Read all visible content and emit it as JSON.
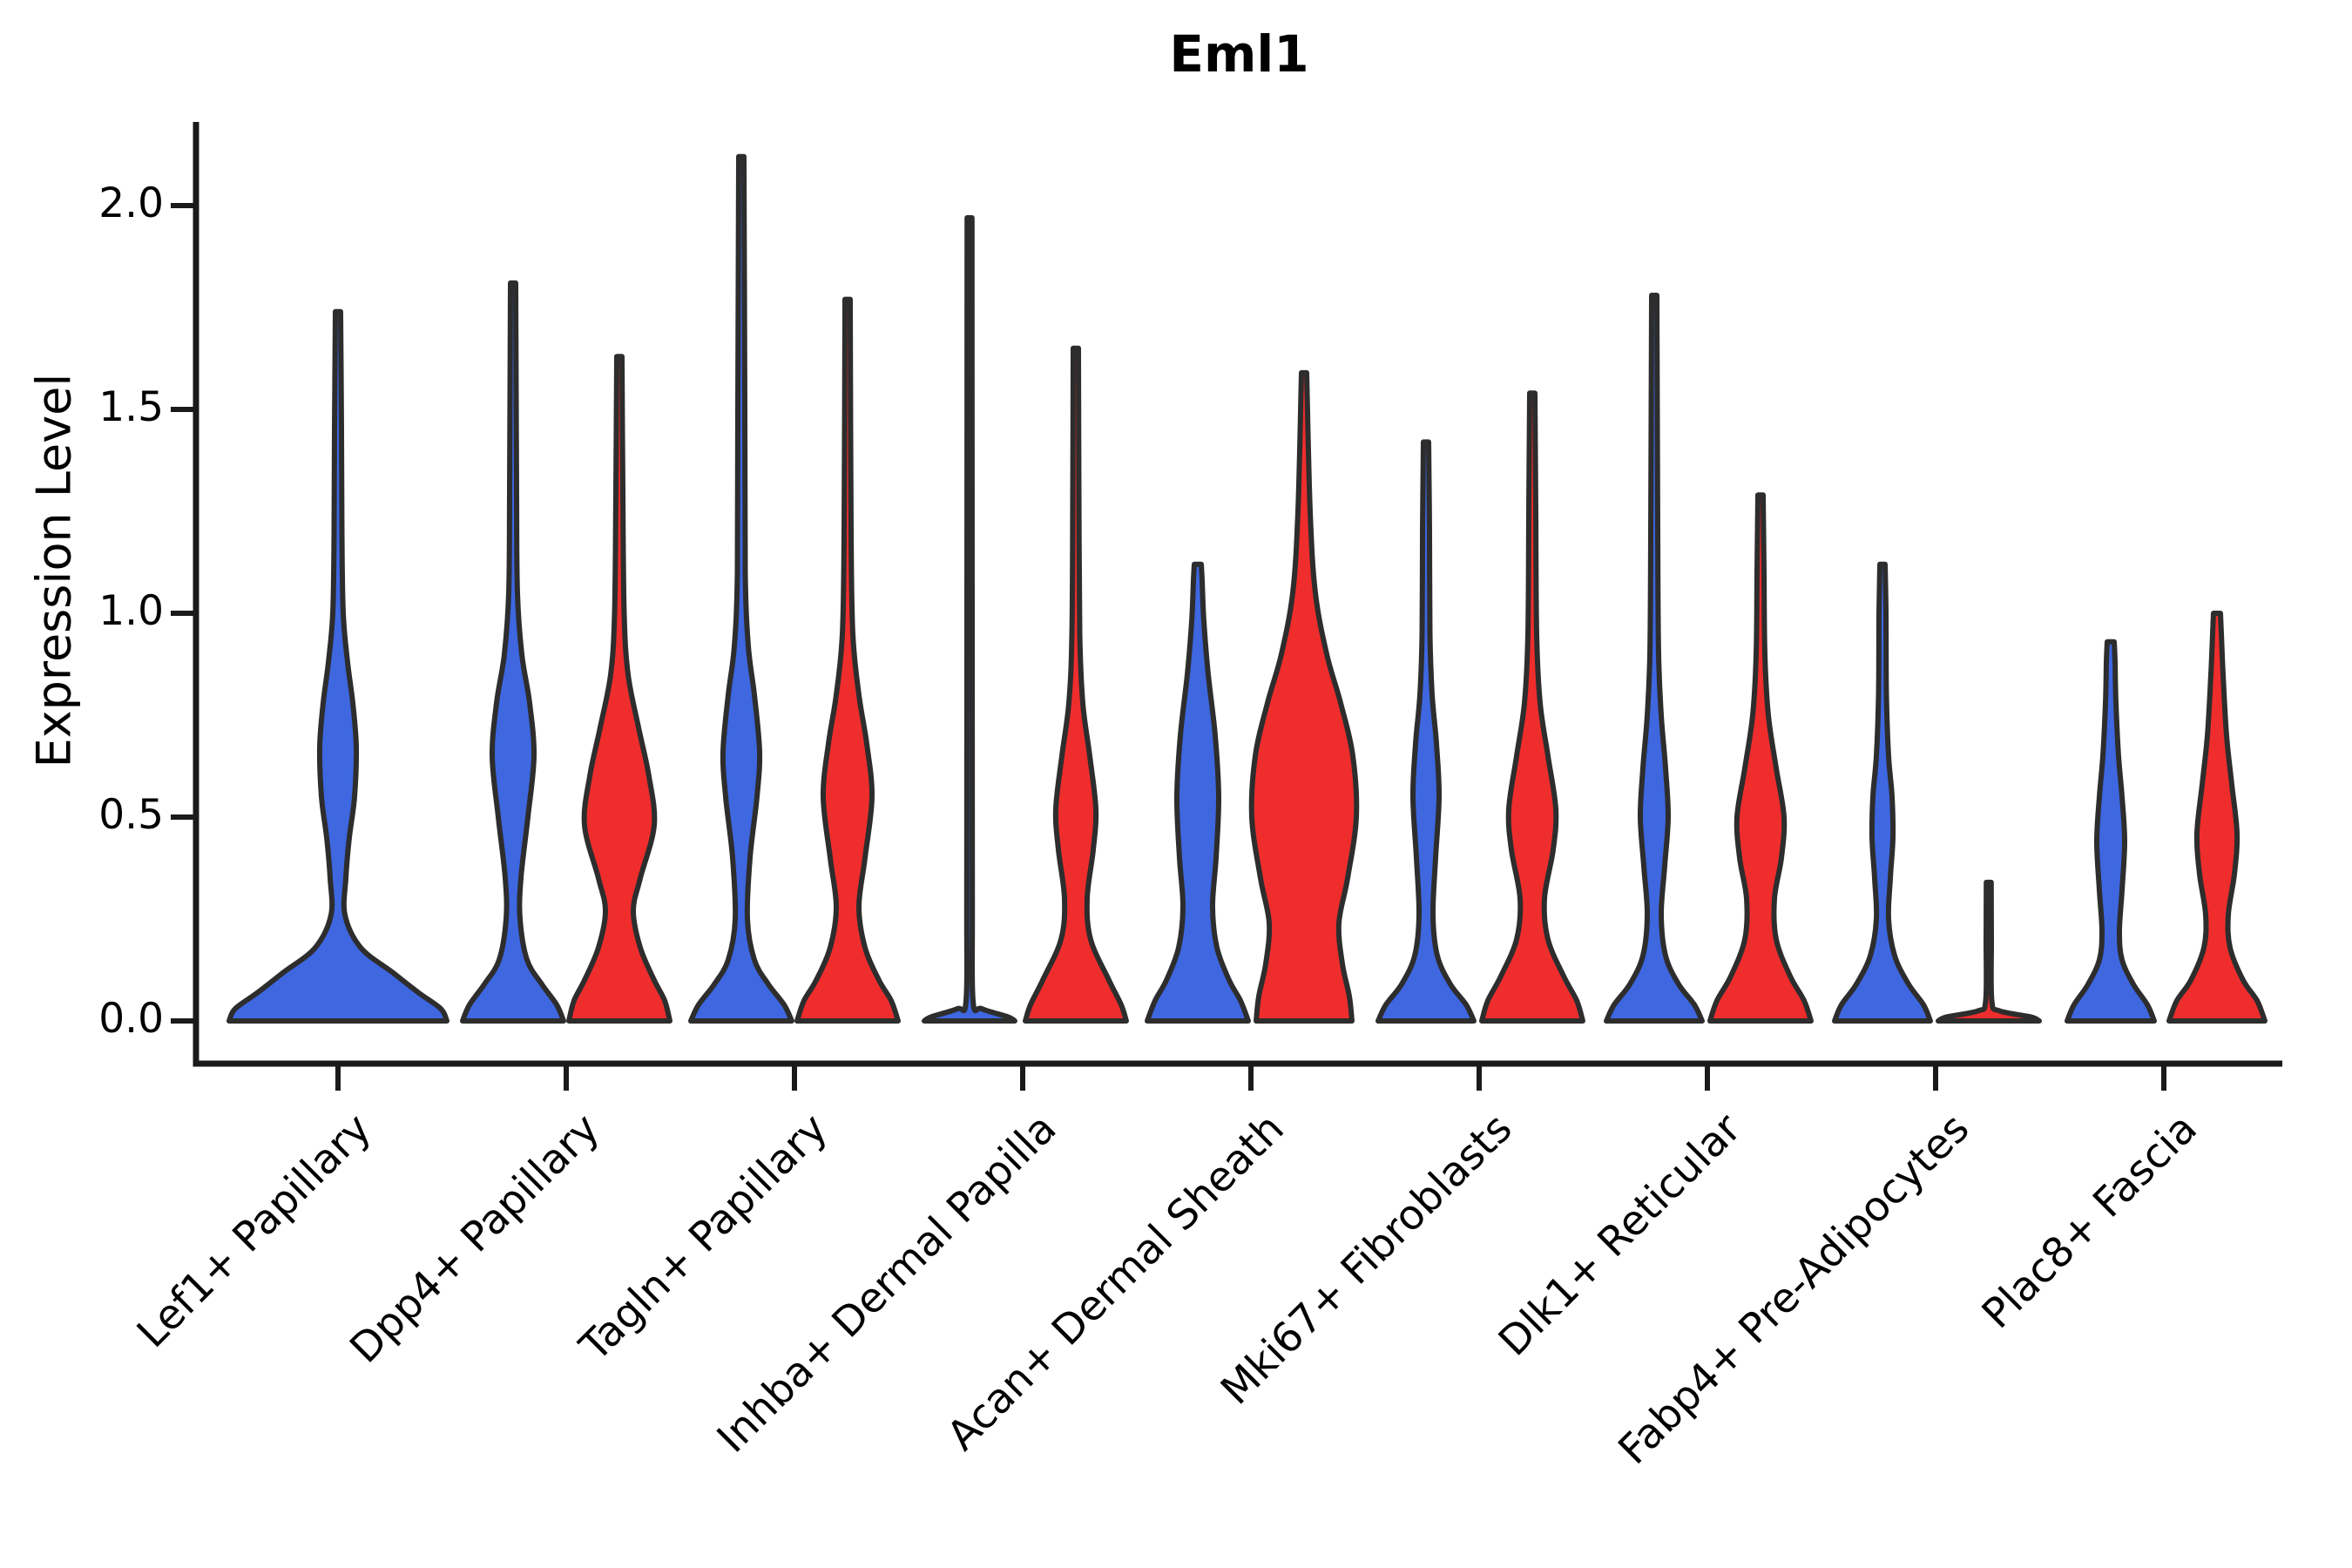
{
  "title": "Eml1",
  "y_axis": {
    "label": "Expression Level",
    "tick_labels": [
      "0.0",
      "0.5",
      "1.0",
      "1.5",
      "2.0"
    ],
    "tick_values": [
      0.0,
      0.5,
      1.0,
      1.5,
      2.0
    ]
  },
  "categories": [
    "Lef1+ Papillary",
    "Dpp4+ Papillary",
    "Tagln+ Papillary",
    "Inhba+ Dermal Papilla",
    "Acan+ Dermal Sheath",
    "Mki67+ Fibroblasts",
    "Dlk1+ Reticular",
    "Fabp4+ Pre-Adipocytes",
    "Plac8+ Fascia"
  ],
  "chart_data": {
    "type": "violin",
    "title": "Eml1",
    "xlabel": "",
    "ylabel": "Expression Level",
    "ylim": [
      0,
      2.2
    ],
    "yticks": [
      0.0,
      0.5,
      1.0,
      1.5,
      2.0
    ],
    "grid": false,
    "legend": "none",
    "colors": {
      "blue": "#3E67E0",
      "red": "#EF2D2D",
      "outline": "#2d2d2d"
    },
    "series": [
      {
        "name": "blue",
        "max_expression": [
          1.74,
          1.81,
          2.12,
          1.97,
          1.12,
          1.42,
          1.78,
          1.12,
          0.93
        ]
      },
      {
        "name": "red",
        "max_expression": [
          null,
          1.63,
          1.77,
          1.65,
          1.59,
          1.54,
          1.29,
          0.34,
          1.0
        ]
      }
    ],
    "violins": [
      {
        "category": 0,
        "group": "blue",
        "offset": 0,
        "max": 1.74,
        "profile": [
          [
            0,
            125
          ],
          [
            0.03,
            118
          ],
          [
            0.07,
            92
          ],
          [
            0.12,
            62
          ],
          [
            0.18,
            26
          ],
          [
            0.26,
            8
          ],
          [
            0.35,
            9
          ],
          [
            0.45,
            13
          ],
          [
            0.55,
            19
          ],
          [
            0.67,
            21
          ],
          [
            0.78,
            17
          ],
          [
            0.88,
            11
          ],
          [
            1.0,
            6
          ],
          [
            1.2,
            4.5
          ],
          [
            1.45,
            4
          ],
          [
            1.74,
            3
          ]
        ]
      },
      {
        "category": 1,
        "group": "blue",
        "offset": -61,
        "max": 1.81,
        "profile": [
          [
            0,
            58
          ],
          [
            0.04,
            50
          ],
          [
            0.09,
            33
          ],
          [
            0.15,
            16
          ],
          [
            0.25,
            8
          ],
          [
            0.35,
            9
          ],
          [
            0.5,
            17
          ],
          [
            0.65,
            24
          ],
          [
            0.78,
            19
          ],
          [
            0.9,
            10
          ],
          [
            1.05,
            5
          ],
          [
            1.3,
            4
          ],
          [
            1.81,
            3
          ]
        ]
      },
      {
        "category": 1,
        "group": "red",
        "offset": 61,
        "max": 1.63,
        "profile": [
          [
            0,
            58
          ],
          [
            0.05,
            52
          ],
          [
            0.1,
            40
          ],
          [
            0.18,
            24
          ],
          [
            0.27,
            16
          ],
          [
            0.35,
            24
          ],
          [
            0.48,
            40
          ],
          [
            0.6,
            34
          ],
          [
            0.72,
            22
          ],
          [
            0.85,
            10
          ],
          [
            1.0,
            5.5
          ],
          [
            1.3,
            4
          ],
          [
            1.63,
            3
          ]
        ]
      },
      {
        "category": 2,
        "group": "blue",
        "offset": -61,
        "max": 2.12,
        "profile": [
          [
            0,
            58
          ],
          [
            0.04,
            49
          ],
          [
            0.09,
            31
          ],
          [
            0.15,
            15
          ],
          [
            0.25,
            7
          ],
          [
            0.4,
            10
          ],
          [
            0.55,
            18
          ],
          [
            0.66,
            21
          ],
          [
            0.8,
            15
          ],
          [
            0.92,
            8
          ],
          [
            1.1,
            4.5
          ],
          [
            1.5,
            4
          ],
          [
            2.12,
            3
          ]
        ]
      },
      {
        "category": 2,
        "group": "red",
        "offset": 61,
        "max": 1.77,
        "profile": [
          [
            0,
            58
          ],
          [
            0.05,
            50
          ],
          [
            0.1,
            36
          ],
          [
            0.18,
            20
          ],
          [
            0.28,
            13
          ],
          [
            0.4,
            20
          ],
          [
            0.55,
            28
          ],
          [
            0.68,
            22
          ],
          [
            0.8,
            13
          ],
          [
            0.95,
            6
          ],
          [
            1.2,
            4
          ],
          [
            1.77,
            3
          ]
        ]
      },
      {
        "category": 3,
        "group": "blue",
        "offset": -61,
        "max": 1.97,
        "profile": [
          [
            0,
            52
          ],
          [
            0.01,
            44
          ],
          [
            0.03,
            14
          ],
          [
            0.05,
            4
          ],
          [
            0.3,
            3.2
          ],
          [
            1.0,
            3
          ],
          [
            1.97,
            2.8
          ]
        ]
      },
      {
        "category": 3,
        "group": "red",
        "offset": 61,
        "max": 1.65,
        "profile": [
          [
            0,
            58
          ],
          [
            0.04,
            52
          ],
          [
            0.1,
            38
          ],
          [
            0.2,
            17
          ],
          [
            0.3,
            13
          ],
          [
            0.42,
            20
          ],
          [
            0.52,
            23
          ],
          [
            0.65,
            16
          ],
          [
            0.78,
            8
          ],
          [
            0.95,
            4.5
          ],
          [
            1.3,
            3.5
          ],
          [
            1.65,
            3
          ]
        ]
      },
      {
        "category": 4,
        "group": "blue",
        "offset": -61,
        "max": 1.12,
        "profile": [
          [
            0,
            58
          ],
          [
            0.05,
            49
          ],
          [
            0.1,
            36
          ],
          [
            0.18,
            22
          ],
          [
            0.28,
            17
          ],
          [
            0.4,
            21
          ],
          [
            0.55,
            24
          ],
          [
            0.7,
            20
          ],
          [
            0.85,
            12
          ],
          [
            0.98,
            7
          ],
          [
            1.08,
            5
          ],
          [
            1.12,
            4
          ]
        ]
      },
      {
        "category": 4,
        "group": "red",
        "offset": 61,
        "max": 1.59,
        "profile": [
          [
            0,
            55
          ],
          [
            0.06,
            52
          ],
          [
            0.14,
            44
          ],
          [
            0.24,
            40
          ],
          [
            0.35,
            50
          ],
          [
            0.5,
            60
          ],
          [
            0.65,
            56
          ],
          [
            0.78,
            42
          ],
          [
            0.9,
            26
          ],
          [
            1.05,
            13
          ],
          [
            1.25,
            7
          ],
          [
            1.59,
            3
          ]
        ]
      },
      {
        "category": 5,
        "group": "blue",
        "offset": -61,
        "max": 1.42,
        "profile": [
          [
            0,
            55
          ],
          [
            0.04,
            46
          ],
          [
            0.09,
            28
          ],
          [
            0.16,
            13
          ],
          [
            0.26,
            8
          ],
          [
            0.4,
            11
          ],
          [
            0.55,
            15
          ],
          [
            0.68,
            12
          ],
          [
            0.8,
            7
          ],
          [
            0.95,
            4.5
          ],
          [
            1.2,
            4
          ],
          [
            1.42,
            3
          ]
        ]
      },
      {
        "category": 5,
        "group": "red",
        "offset": 61,
        "max": 1.54,
        "profile": [
          [
            0,
            58
          ],
          [
            0.05,
            51
          ],
          [
            0.11,
            36
          ],
          [
            0.2,
            18
          ],
          [
            0.3,
            14
          ],
          [
            0.42,
            24
          ],
          [
            0.52,
            27
          ],
          [
            0.65,
            18
          ],
          [
            0.78,
            9
          ],
          [
            0.95,
            5
          ],
          [
            1.25,
            4
          ],
          [
            1.54,
            3
          ]
        ]
      },
      {
        "category": 6,
        "group": "blue",
        "offset": -61,
        "max": 1.78,
        "profile": [
          [
            0,
            55
          ],
          [
            0.04,
            46
          ],
          [
            0.09,
            28
          ],
          [
            0.16,
            13
          ],
          [
            0.26,
            8
          ],
          [
            0.38,
            12
          ],
          [
            0.5,
            16
          ],
          [
            0.62,
            13
          ],
          [
            0.75,
            8
          ],
          [
            0.9,
            5
          ],
          [
            1.2,
            4
          ],
          [
            1.78,
            3
          ]
        ]
      },
      {
        "category": 6,
        "group": "red",
        "offset": 61,
        "max": 1.29,
        "profile": [
          [
            0,
            58
          ],
          [
            0.05,
            50
          ],
          [
            0.11,
            34
          ],
          [
            0.2,
            18
          ],
          [
            0.3,
            16
          ],
          [
            0.4,
            24
          ],
          [
            0.5,
            27
          ],
          [
            0.62,
            18
          ],
          [
            0.75,
            9
          ],
          [
            0.9,
            5
          ],
          [
            1.1,
            4
          ],
          [
            1.29,
            3
          ]
        ]
      },
      {
        "category": 7,
        "group": "blue",
        "offset": -61,
        "max": 1.12,
        "profile": [
          [
            0,
            55
          ],
          [
            0.04,
            47
          ],
          [
            0.09,
            30
          ],
          [
            0.16,
            14
          ],
          [
            0.25,
            7
          ],
          [
            0.35,
            9
          ],
          [
            0.45,
            12
          ],
          [
            0.55,
            11
          ],
          [
            0.65,
            7
          ],
          [
            0.8,
            4.5
          ],
          [
            1.0,
            4
          ],
          [
            1.12,
            3
          ]
        ]
      },
      {
        "category": 7,
        "group": "red",
        "offset": 61,
        "max": 0.34,
        "profile": [
          [
            0,
            58
          ],
          [
            0.01,
            48
          ],
          [
            0.025,
            12
          ],
          [
            0.05,
            3.5
          ],
          [
            0.2,
            3
          ],
          [
            0.34,
            2.8
          ]
        ]
      },
      {
        "category": 8,
        "group": "blue",
        "offset": -61,
        "max": 0.93,
        "profile": [
          [
            0,
            50
          ],
          [
            0.04,
            42
          ],
          [
            0.09,
            26
          ],
          [
            0.15,
            13
          ],
          [
            0.22,
            10
          ],
          [
            0.32,
            13
          ],
          [
            0.44,
            16
          ],
          [
            0.55,
            13
          ],
          [
            0.65,
            9
          ],
          [
            0.78,
            6
          ],
          [
            0.88,
            5
          ],
          [
            0.93,
            4
          ]
        ]
      },
      {
        "category": 8,
        "group": "red",
        "offset": 61,
        "max": 1.0,
        "profile": [
          [
            0,
            55
          ],
          [
            0.05,
            46
          ],
          [
            0.1,
            30
          ],
          [
            0.18,
            15
          ],
          [
            0.26,
            13
          ],
          [
            0.36,
            20
          ],
          [
            0.46,
            23
          ],
          [
            0.58,
            17
          ],
          [
            0.7,
            11
          ],
          [
            0.85,
            7
          ],
          [
            0.95,
            5
          ],
          [
            1.0,
            4
          ]
        ]
      }
    ]
  }
}
